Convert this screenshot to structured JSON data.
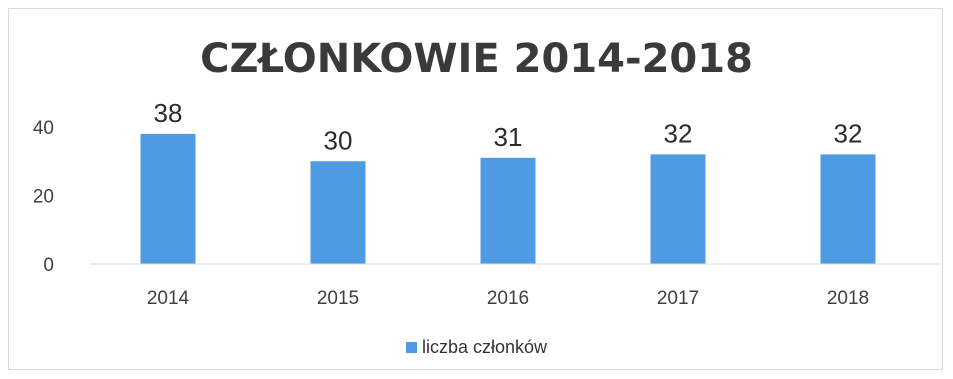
{
  "chart_data": {
    "type": "bar",
    "title": "CZŁONKOWIE  2014-2018",
    "categories": [
      "2014",
      "2015",
      "2016",
      "2017",
      "2018"
    ],
    "series": [
      {
        "name": "liczba członków",
        "values": [
          38,
          30,
          31,
          32,
          32
        ],
        "color": "#4f9be3"
      }
    ],
    "data_labels": [
      "38",
      "30",
      "31",
      "32",
      "32"
    ],
    "y_ticks": [
      "0",
      "20",
      "40"
    ],
    "ylim": [
      0,
      40
    ],
    "grid": false,
    "legend": "bottom",
    "xlabel": "",
    "ylabel": ""
  }
}
